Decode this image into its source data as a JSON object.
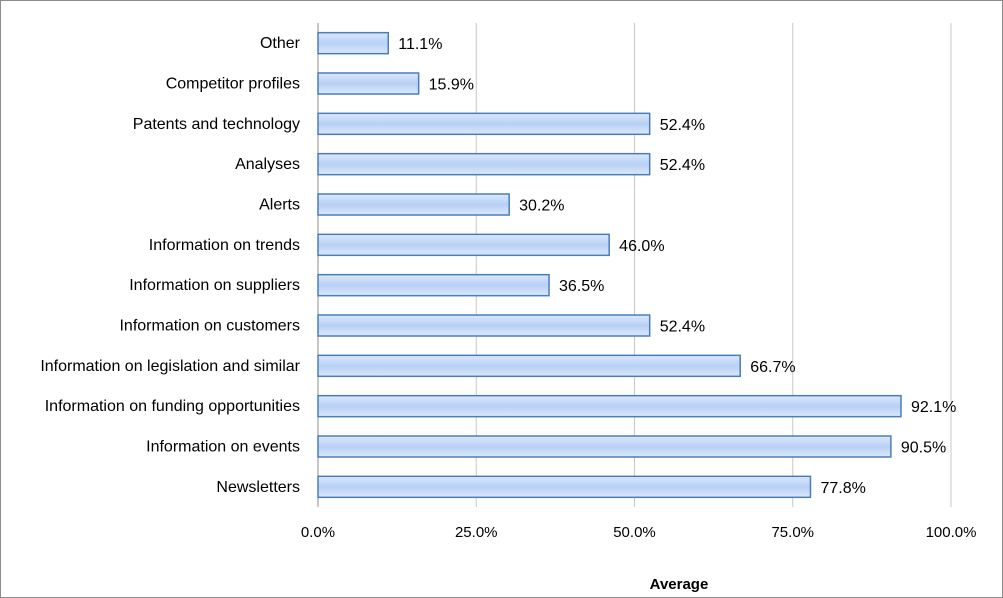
{
  "chart_data": {
    "type": "bar",
    "orientation": "horizontal",
    "categories": [
      "Other",
      "Competitor profiles",
      "Patents and technology",
      "Analyses",
      "Alerts",
      "Information on trends",
      "Information on suppliers",
      "Information on customers",
      "Information on legislation and similar",
      "Information on funding opportunities",
      "Information on events",
      "Newsletters"
    ],
    "series": [
      {
        "values": [
          11.1,
          15.9,
          52.4,
          52.4,
          30.2,
          46.0,
          36.5,
          52.4,
          66.7,
          92.1,
          90.5,
          77.8
        ],
        "labels": [
          "11.1%",
          "15.9%",
          "52.4%",
          "52.4%",
          "30.2%",
          "46.0%",
          "36.5%",
          "52.4%",
          "66.7%",
          "92.1%",
          "90.5%",
          "77.8%"
        ]
      }
    ],
    "xlim": [
      0,
      100
    ],
    "xticks": [
      0,
      25,
      50,
      75,
      100
    ],
    "xtick_labels": [
      "0.0%",
      "25.0%",
      "50.0%",
      "75.0%",
      "100.0%"
    ],
    "xlabel": "Average",
    "ylabel": "",
    "title": "",
    "grid": "vertical",
    "legend": "none",
    "colors": {
      "bar_fill_top": "#dbe8fb",
      "bar_fill_mid": "#b8d0f5",
      "bar_stroke": "#4a7ebb",
      "grid": "#c8c8c8",
      "axis": "#8c8c8c"
    }
  }
}
